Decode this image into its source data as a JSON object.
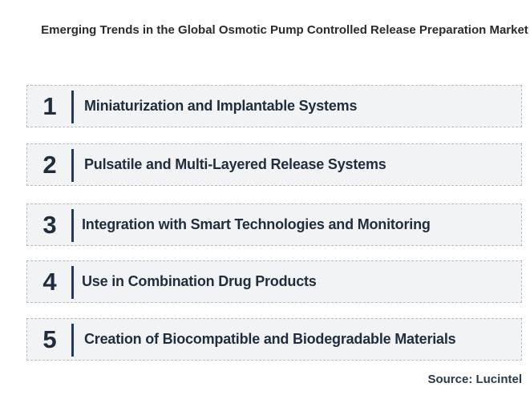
{
  "title": "Emerging Trends in the Global Osmotic Pump Controlled Release Preparation Market",
  "trends": [
    {
      "number": "1",
      "label": "Miniaturization and Implantable Systems"
    },
    {
      "number": "2",
      "label": "Pulsatile and Multi-Layered Release Systems"
    },
    {
      "number": "3",
      "label": "Integration with Smart Technologies and Monitoring"
    },
    {
      "number": "4",
      "label": "Use in Combination Drug Products"
    },
    {
      "number": "5",
      "label": "Creation of Biocompatible and Biodegradable Materials"
    }
  ],
  "source": "Source: Lucintel",
  "colors": {
    "box_background": "#f2f3f5",
    "accent_bar": "#1f3864",
    "text": "#1f2d3d"
  }
}
